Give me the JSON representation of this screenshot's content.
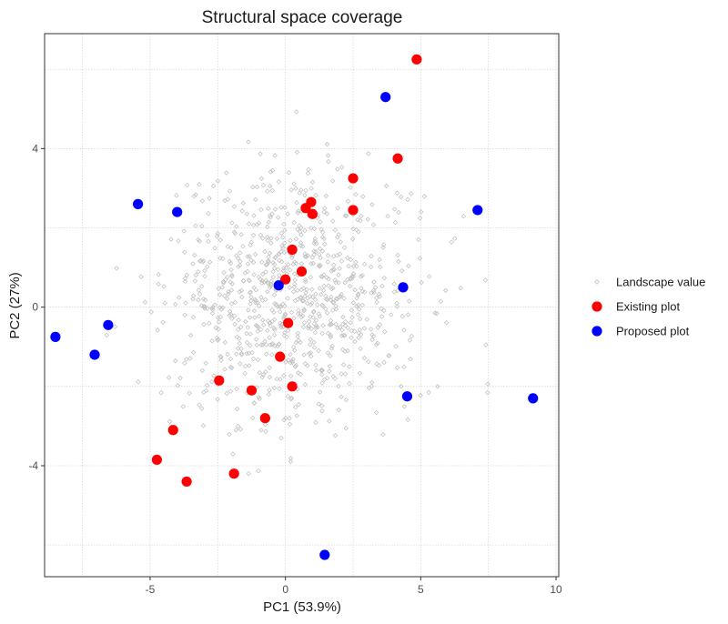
{
  "chart_data": {
    "type": "scatter",
    "title": "Structural space coverage",
    "xlabel": "PC1 (53.9%)",
    "ylabel": "PC2 (27%)",
    "xlim": [
      -8.9,
      10.1
    ],
    "ylim": [
      -6.8,
      6.9
    ],
    "x_ticks": [
      -5,
      0,
      5,
      10
    ],
    "y_ticks": [
      -4,
      0,
      4
    ],
    "x_tick_labels": [
      "-5",
      "0",
      "5",
      "10"
    ],
    "y_tick_labels": [
      "-4",
      "0",
      "4"
    ],
    "grid": true,
    "legend_position": "right",
    "series": [
      {
        "name": "Landscape value",
        "color": "#bdbdbd",
        "marker": "small-diamond",
        "generated_points": {
          "count": 900,
          "center": [
            0.3,
            0.2
          ],
          "sd": [
            2.3,
            1.55
          ],
          "seed": 7
        }
      },
      {
        "name": "Existing plot",
        "color": "#ff0000",
        "marker": "circle",
        "points": [
          [
            4.85,
            6.25
          ],
          [
            4.15,
            3.75
          ],
          [
            2.5,
            3.25
          ],
          [
            2.5,
            2.45
          ],
          [
            0.95,
            2.65
          ],
          [
            0.75,
            2.5
          ],
          [
            1.0,
            2.35
          ],
          [
            0.25,
            1.45
          ],
          [
            0.6,
            0.9
          ],
          [
            0.0,
            0.7
          ],
          [
            0.1,
            -0.4
          ],
          [
            -0.2,
            -1.25
          ],
          [
            -2.45,
            -1.85
          ],
          [
            -1.25,
            -2.1
          ],
          [
            0.25,
            -2.0
          ],
          [
            -0.75,
            -2.8
          ],
          [
            -4.15,
            -3.1
          ],
          [
            -4.75,
            -3.85
          ],
          [
            -3.65,
            -4.4
          ],
          [
            -1.9,
            -4.2
          ]
        ]
      },
      {
        "name": "Proposed plot",
        "color": "#0000ff",
        "marker": "circle",
        "points": [
          [
            3.7,
            5.3
          ],
          [
            7.1,
            2.45
          ],
          [
            -5.45,
            2.6
          ],
          [
            -4.0,
            2.4
          ],
          [
            -0.25,
            0.55
          ],
          [
            4.35,
            0.5
          ],
          [
            -8.5,
            -0.75
          ],
          [
            -7.05,
            -1.2
          ],
          [
            -6.55,
            -0.45
          ],
          [
            4.5,
            -2.25
          ],
          [
            9.15,
            -2.3
          ],
          [
            1.45,
            -6.25
          ]
        ]
      }
    ]
  }
}
